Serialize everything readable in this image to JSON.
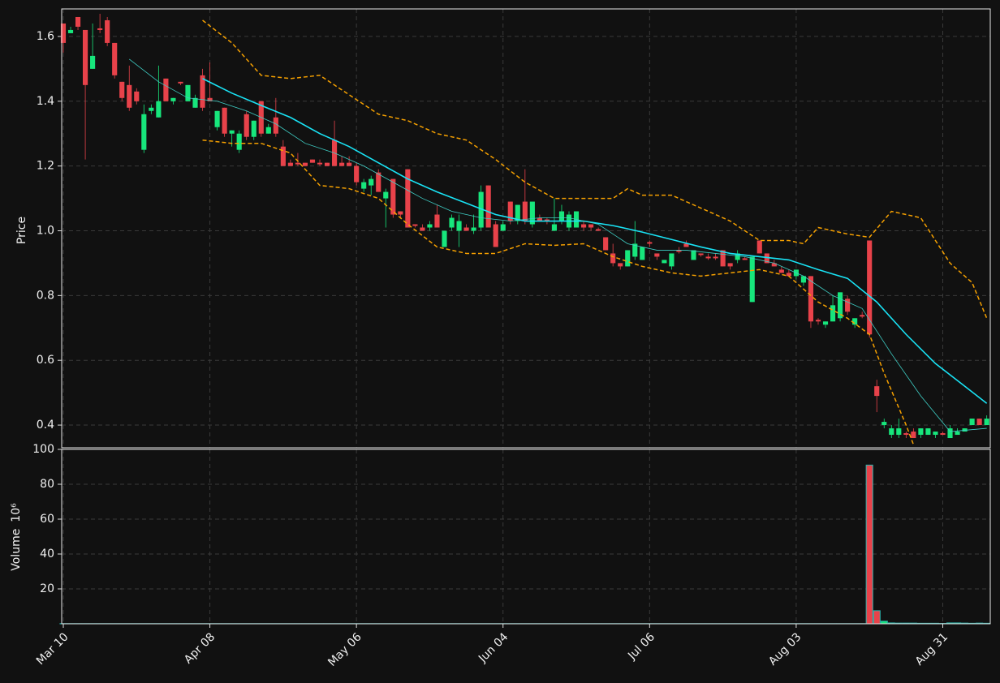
{
  "chart_data": {
    "type": "candlestick",
    "ylabel": "Price",
    "volume_ylabel": "Volume",
    "volume_scale": "10⁶",
    "xlim": [
      -0.22,
      126.48
    ],
    "xticks": [
      {
        "value": 0,
        "label": "Mar 10"
      },
      {
        "value": 20,
        "label": "Apr 08"
      },
      {
        "value": 40,
        "label": "May 06"
      },
      {
        "value": 60,
        "label": "Jun 04"
      },
      {
        "value": 80,
        "label": "Jul 06"
      },
      {
        "value": 100,
        "label": "Aug 03"
      },
      {
        "value": 120,
        "label": "Aug 31"
      }
    ],
    "ylim": [
      0.33,
      1.685
    ],
    "yticks": [
      0.4,
      0.6,
      0.8,
      {
        "value": 1,
        "label": "1.0"
      },
      1.2,
      1.4,
      1.6
    ],
    "volume_ylim": [
      0,
      100
    ],
    "volume_yticks": [
      20,
      40,
      60,
      80,
      100
    ],
    "grid": true,
    "up_color": "#17e67c",
    "down_color": "#e8424a",
    "volume_edge_color": "#2ab6b0",
    "ohlc": [
      [
        1.64,
        1.64,
        1.55,
        1.58
      ],
      [
        1.61,
        1.63,
        1.61,
        1.62
      ],
      [
        1.66,
        1.66,
        1.62,
        1.63
      ],
      [
        1.62,
        1.62,
        1.22,
        1.45
      ],
      [
        1.5,
        1.64,
        1.5,
        1.54
      ],
      [
        1.625,
        1.67,
        1.61,
        1.62
      ],
      [
        1.65,
        1.66,
        1.57,
        1.58
      ],
      [
        1.58,
        1.58,
        1.47,
        1.48
      ],
      [
        1.46,
        1.46,
        1.4,
        1.41
      ],
      [
        1.45,
        1.51,
        1.37,
        1.38
      ],
      [
        1.43,
        1.44,
        1.39,
        1.4
      ],
      [
        1.25,
        1.39,
        1.24,
        1.36
      ],
      [
        1.37,
        1.39,
        1.36,
        1.38
      ],
      [
        1.35,
        1.51,
        1.35,
        1.4
      ],
      [
        1.47,
        1.47,
        1.4,
        1.4
      ],
      [
        1.4,
        1.41,
        1.39,
        1.41
      ],
      [
        1.46,
        1.46,
        1.45,
        1.455
      ],
      [
        1.4,
        1.45,
        1.4,
        1.45
      ],
      [
        1.38,
        1.42,
        1.38,
        1.41
      ],
      [
        1.48,
        1.5,
        1.37,
        1.38
      ],
      [
        1.41,
        1.52,
        1.4,
        1.4
      ],
      [
        1.32,
        1.37,
        1.31,
        1.37
      ],
      [
        1.38,
        1.38,
        1.29,
        1.3
      ],
      [
        1.3,
        1.31,
        1.26,
        1.31
      ],
      [
        1.25,
        1.31,
        1.24,
        1.3
      ],
      [
        1.36,
        1.37,
        1.28,
        1.29
      ],
      [
        1.29,
        1.34,
        1.28,
        1.34
      ],
      [
        1.4,
        1.4,
        1.29,
        1.3
      ],
      [
        1.3,
        1.33,
        1.3,
        1.32
      ],
      [
        1.35,
        1.41,
        1.29,
        1.3
      ],
      [
        1.26,
        1.28,
        1.2,
        1.2
      ],
      [
        1.21,
        1.22,
        1.2,
        1.2
      ],
      [
        1.21,
        1.24,
        1.2,
        1.205
      ],
      [
        1.21,
        1.21,
        1.2,
        1.2
      ],
      [
        1.22,
        1.22,
        1.21,
        1.21
      ],
      [
        1.21,
        1.22,
        1.2,
        1.205
      ],
      [
        1.21,
        1.21,
        1.2,
        1.2
      ],
      [
        1.28,
        1.34,
        1.2,
        1.2
      ],
      [
        1.21,
        1.23,
        1.2,
        1.2
      ],
      [
        1.21,
        1.23,
        1.2,
        1.2
      ],
      [
        1.2,
        1.21,
        1.14,
        1.15
      ],
      [
        1.13,
        1.16,
        1.12,
        1.15
      ],
      [
        1.14,
        1.17,
        1.11,
        1.16
      ],
      [
        1.18,
        1.19,
        1.12,
        1.12
      ],
      [
        1.1,
        1.13,
        1.01,
        1.12
      ],
      [
        1.16,
        1.16,
        1.04,
        1.05
      ],
      [
        1.06,
        1.06,
        1.04,
        1.05
      ],
      [
        1.19,
        1.19,
        1.01,
        1.01
      ],
      [
        1.02,
        1.02,
        1.01,
        1.015
      ],
      [
        1.01,
        1.02,
        1,
        1
      ],
      [
        1.01,
        1.03,
        1,
        1.02
      ],
      [
        1.05,
        1.08,
        1.01,
        1.01
      ],
      [
        0.95,
        1,
        0.95,
        1
      ],
      [
        1.01,
        1.05,
        1,
        1.04
      ],
      [
        1,
        1.05,
        0.95,
        1.03
      ],
      [
        1.01,
        1.02,
        1,
        1
      ],
      [
        1,
        1.05,
        0.99,
        1.01
      ],
      [
        1.01,
        1.14,
        1,
        1.12
      ],
      [
        1.14,
        1.14,
        1.01,
        1.01
      ],
      [
        1.02,
        1.03,
        0.95,
        0.95
      ],
      [
        1,
        1.03,
        1,
        1.02
      ],
      [
        1.09,
        1.09,
        1.02,
        1.03
      ],
      [
        1.03,
        1.08,
        1.02,
        1.08
      ],
      [
        1.09,
        1.19,
        1.02,
        1.03
      ],
      [
        1.02,
        1.09,
        1.01,
        1.09
      ],
      [
        1.04,
        1.05,
        1.03,
        1.03
      ],
      [
        1.035,
        1.04,
        1.02,
        1.03
      ],
      [
        1,
        1.1,
        1,
        1.02
      ],
      [
        1.03,
        1.08,
        1.02,
        1.06
      ],
      [
        1.01,
        1.06,
        1,
        1.05
      ],
      [
        1.01,
        1.06,
        1.01,
        1.06
      ],
      [
        1.02,
        1.03,
        1,
        1.01
      ],
      [
        1.02,
        1.02,
        1,
        1.01
      ],
      [
        1.005,
        1.01,
        1,
        1
      ],
      [
        0.98,
        0.98,
        0.94,
        0.94
      ],
      [
        0.93,
        0.96,
        0.89,
        0.9
      ],
      [
        0.9,
        0.9,
        0.88,
        0.89
      ],
      [
        0.89,
        0.94,
        0.89,
        0.94
      ],
      [
        0.92,
        1.03,
        0.91,
        0.96
      ],
      [
        0.91,
        0.95,
        0.91,
        0.95
      ],
      [
        0.965,
        0.97,
        0.95,
        0.96
      ],
      [
        0.93,
        0.93,
        0.91,
        0.92
      ],
      [
        0.9,
        0.91,
        0.9,
        0.91
      ],
      [
        0.89,
        0.93,
        0.88,
        0.93
      ],
      [
        0.94,
        0.95,
        0.93,
        0.935
      ],
      [
        0.96,
        0.97,
        0.95,
        0.95
      ],
      [
        0.91,
        0.94,
        0.91,
        0.94
      ],
      [
        0.93,
        0.93,
        0.92,
        0.925
      ],
      [
        0.92,
        0.93,
        0.91,
        0.915
      ],
      [
        0.92,
        0.93,
        0.91,
        0.915
      ],
      [
        0.94,
        0.94,
        0.89,
        0.89
      ],
      [
        0.9,
        0.9,
        0.88,
        0.89
      ],
      [
        0.91,
        0.94,
        0.9,
        0.93
      ],
      [
        0.915,
        0.92,
        0.91,
        0.91
      ],
      [
        0.78,
        0.92,
        0.78,
        0.92
      ],
      [
        0.97,
        0.97,
        0.93,
        0.93
      ],
      [
        0.93,
        0.93,
        0.9,
        0.9
      ],
      [
        0.9,
        0.91,
        0.89,
        0.89
      ],
      [
        0.88,
        0.89,
        0.87,
        0.87
      ],
      [
        0.87,
        0.88,
        0.86,
        0.86
      ],
      [
        0.86,
        0.88,
        0.85,
        0.88
      ],
      [
        0.84,
        0.86,
        0.83,
        0.86
      ],
      [
        0.86,
        0.86,
        0.7,
        0.72
      ],
      [
        0.725,
        0.73,
        0.71,
        0.72
      ],
      [
        0.71,
        0.72,
        0.7,
        0.72
      ],
      [
        0.72,
        0.8,
        0.72,
        0.77
      ],
      [
        0.73,
        0.81,
        0.72,
        0.81
      ],
      [
        0.79,
        0.8,
        0.74,
        0.75
      ],
      [
        0.71,
        0.73,
        0.7,
        0.73
      ],
      [
        0.74,
        0.75,
        0.73,
        0.735
      ],
      [
        0.97,
        0.97,
        0.67,
        0.68
      ],
      [
        0.52,
        0.54,
        0.44,
        0.49
      ],
      [
        0.4,
        0.42,
        0.39,
        0.41
      ],
      [
        0.37,
        0.4,
        0.36,
        0.39
      ],
      [
        0.37,
        0.42,
        0.36,
        0.39
      ],
      [
        0.375,
        0.38,
        0.36,
        0.37
      ],
      [
        0.38,
        0.39,
        0.36,
        0.36
      ],
      [
        0.37,
        0.39,
        0.36,
        0.39
      ],
      [
        0.37,
        0.39,
        0.37,
        0.39
      ],
      [
        0.37,
        0.38,
        0.36,
        0.38
      ],
      [
        0.375,
        0.38,
        0.37,
        0.37
      ],
      [
        0.36,
        0.4,
        0.36,
        0.39
      ],
      [
        0.37,
        0.39,
        0.37,
        0.38
      ],
      [
        0.38,
        0.39,
        0.38,
        0.39
      ],
      [
        0.4,
        0.42,
        0.4,
        0.42
      ],
      [
        0.42,
        0.42,
        0.4,
        0.4
      ],
      [
        0.4,
        0.43,
        0.4,
        0.42
      ]
    ],
    "volume": [
      0.1,
      0.1,
      0.1,
      0.1,
      0.1,
      0.1,
      0.1,
      0.1,
      0.1,
      0.1,
      0.1,
      0.1,
      0.1,
      0.1,
      0.1,
      0.1,
      0.1,
      0.1,
      0.1,
      0.1,
      0.1,
      0.1,
      0.1,
      0.1,
      0.1,
      0.1,
      0.1,
      0.1,
      0.1,
      0.1,
      0.1,
      0.1,
      0.1,
      0.1,
      0.1,
      0.1,
      0.1,
      0.1,
      0.1,
      0.1,
      0.1,
      0.1,
      0.1,
      0.1,
      0.1,
      0.1,
      0.1,
      0.1,
      0.1,
      0.1,
      0.1,
      0.1,
      0.1,
      0.1,
      0.1,
      0.1,
      0.1,
      0.1,
      0.1,
      0.1,
      0.1,
      0.1,
      0.1,
      0.1,
      0.1,
      0.1,
      0.1,
      0.1,
      0.1,
      0.1,
      0.1,
      0.1,
      0.1,
      0.1,
      0.1,
      0.1,
      0.1,
      0.1,
      0.1,
      0.1,
      0.1,
      0.1,
      0.1,
      0.1,
      0.1,
      0.1,
      0.1,
      0.1,
      0.1,
      0.1,
      0.1,
      0.1,
      0.1,
      0.1,
      0.1,
      0.1,
      0.1,
      0.1,
      0.1,
      0.1,
      0.1,
      0.1,
      0.1,
      0.1,
      0.1,
      0.1,
      0.1,
      0.1,
      0.1,
      0.1,
      91,
      7.5,
      1.5,
      0.5,
      0.4,
      0.4,
      0.4,
      0.3,
      0.3,
      0.3,
      0.2,
      0.5,
      0.5,
      0.4,
      0.3,
      0.4,
      0.3
    ],
    "overlays": [
      {
        "color": "#19e3f5",
        "linestyle": "solid",
        "x": [
          19,
          23,
          27,
          31,
          35,
          39,
          43,
          47,
          51,
          55,
          59,
          63,
          67,
          71,
          75,
          79,
          83,
          87,
          91,
          95,
          99,
          103,
          107,
          111,
          115,
          119,
          123,
          126
        ],
        "values": [
          1.47,
          1.425,
          1.387,
          1.35,
          1.3,
          1.26,
          1.21,
          1.16,
          1.12,
          1.085,
          1.05,
          1.03,
          1.03,
          1.03,
          1.016,
          0.996,
          0.973,
          0.95,
          0.93,
          0.92,
          0.91,
          0.88,
          0.853,
          0.78,
          0.68,
          0.59,
          0.52,
          0.467
        ]
      },
      {
        "color": "#3fcfc6",
        "linestyle": "solid",
        "x": [
          9,
          13,
          17,
          21,
          25,
          29,
          33,
          37,
          41,
          45,
          49,
          53,
          57,
          61,
          65,
          69,
          73,
          77,
          81,
          85,
          89,
          93,
          97,
          101,
          105,
          109,
          113,
          117,
          121,
          126
        ],
        "values": [
          1.53,
          1.46,
          1.41,
          1.4,
          1.37,
          1.33,
          1.27,
          1.24,
          1.2,
          1.15,
          1.1,
          1.06,
          1.04,
          1.03,
          1.04,
          1.04,
          1.02,
          0.96,
          0.94,
          0.94,
          0.93,
          0.92,
          0.9,
          0.86,
          0.8,
          0.76,
          0.62,
          0.49,
          0.38,
          0.39
        ]
      },
      {
        "color": "#f5a000",
        "linestyle": "dashed",
        "x": [
          19,
          23,
          27,
          31,
          35,
          39,
          43,
          47,
          51,
          55,
          59,
          63,
          67,
          71,
          75,
          77,
          79,
          83,
          87,
          91,
          95,
          99,
          101,
          103,
          107,
          110,
          113,
          117,
          121,
          124,
          126
        ],
        "values": [
          1.65,
          1.58,
          1.48,
          1.47,
          1.48,
          1.42,
          1.36,
          1.34,
          1.3,
          1.28,
          1.22,
          1.15,
          1.1,
          1.1,
          1.1,
          1.13,
          1.11,
          1.11,
          1.07,
          1.03,
          0.97,
          0.97,
          0.96,
          1.01,
          0.99,
          0.98,
          1.06,
          1.04,
          0.9,
          0.84,
          0.73
        ]
      },
      {
        "color": "#f5a000",
        "linestyle": "dashed",
        "x": [
          19,
          23,
          27,
          31,
          35,
          39,
          43,
          47,
          51,
          55,
          59,
          63,
          67,
          71,
          75,
          79,
          83,
          87,
          91,
          95,
          99,
          103,
          107,
          110,
          112,
          115,
          116
        ],
        "values": [
          1.28,
          1.27,
          1.27,
          1.24,
          1.14,
          1.13,
          1.1,
          1.02,
          0.95,
          0.93,
          0.93,
          0.96,
          0.955,
          0.96,
          0.92,
          0.89,
          0.87,
          0.86,
          0.87,
          0.88,
          0.86,
          0.78,
          0.73,
          0.68,
          0.56,
          0.4,
          0.34
        ]
      }
    ]
  }
}
